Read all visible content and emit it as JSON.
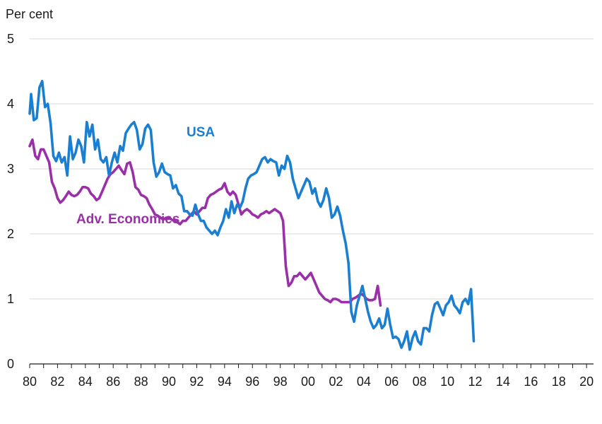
{
  "chart_data": {
    "type": "line",
    "ylabel": "Per cent",
    "ylim": [
      0,
      5
    ],
    "yticks": [
      "0",
      "1",
      "2",
      "3",
      "4",
      "5"
    ],
    "xlim": [
      1980.0,
      2020.5
    ],
    "xticks": [
      {
        "x": 1980,
        "label": "80"
      },
      {
        "x": 1982,
        "label": "82"
      },
      {
        "x": 1984,
        "label": "84"
      },
      {
        "x": 1986,
        "label": "86"
      },
      {
        "x": 1988,
        "label": "88"
      },
      {
        "x": 1990,
        "label": "90"
      },
      {
        "x": 1992,
        "label": "92"
      },
      {
        "x": 1994,
        "label": "94"
      },
      {
        "x": 1996,
        "label": "96"
      },
      {
        "x": 1998,
        "label": "98"
      },
      {
        "x": 2000,
        "label": "00"
      },
      {
        "x": 2002,
        "label": "02"
      },
      {
        "x": 2004,
        "label": "04"
      },
      {
        "x": 2006,
        "label": "06"
      },
      {
        "x": 2008,
        "label": "08"
      },
      {
        "x": 2010,
        "label": "10"
      },
      {
        "x": 2012,
        "label": "12"
      },
      {
        "x": 2014,
        "label": "14"
      },
      {
        "x": 2016,
        "label": "16"
      },
      {
        "x": 2018,
        "label": "18"
      },
      {
        "x": 2020,
        "label": "20"
      }
    ],
    "grid": true,
    "series": [
      {
        "name": "USA",
        "color": "#1a7fd0",
        "points": [
          [
            1980.0,
            3.85
          ],
          [
            1980.1,
            4.15
          ],
          [
            1980.3,
            3.75
          ],
          [
            1980.5,
            3.78
          ],
          [
            1980.7,
            4.25
          ],
          [
            1980.9,
            4.35
          ],
          [
            1981.1,
            3.95
          ],
          [
            1981.3,
            4.0
          ],
          [
            1981.5,
            3.7
          ],
          [
            1981.7,
            3.2
          ],
          [
            1981.9,
            3.12
          ],
          [
            1982.1,
            3.25
          ],
          [
            1982.3,
            3.1
          ],
          [
            1982.5,
            3.18
          ],
          [
            1982.7,
            2.9
          ],
          [
            1982.9,
            3.5
          ],
          [
            1983.1,
            3.15
          ],
          [
            1983.3,
            3.25
          ],
          [
            1983.5,
            3.45
          ],
          [
            1983.7,
            3.35
          ],
          [
            1983.9,
            3.1
          ],
          [
            1984.1,
            3.72
          ],
          [
            1984.3,
            3.5
          ],
          [
            1984.5,
            3.68
          ],
          [
            1984.7,
            3.3
          ],
          [
            1984.9,
            3.45
          ],
          [
            1985.1,
            3.15
          ],
          [
            1985.3,
            3.1
          ],
          [
            1985.5,
            3.18
          ],
          [
            1985.7,
            2.9
          ],
          [
            1985.9,
            3.1
          ],
          [
            1986.1,
            3.25
          ],
          [
            1986.3,
            3.1
          ],
          [
            1986.5,
            3.35
          ],
          [
            1986.7,
            3.28
          ],
          [
            1986.9,
            3.55
          ],
          [
            1987.1,
            3.62
          ],
          [
            1987.3,
            3.68
          ],
          [
            1987.5,
            3.72
          ],
          [
            1987.7,
            3.6
          ],
          [
            1987.9,
            3.3
          ],
          [
            1988.1,
            3.38
          ],
          [
            1988.3,
            3.62
          ],
          [
            1988.5,
            3.68
          ],
          [
            1988.7,
            3.6
          ],
          [
            1988.9,
            3.1
          ],
          [
            1989.1,
            2.88
          ],
          [
            1989.3,
            2.95
          ],
          [
            1989.5,
            3.08
          ],
          [
            1989.7,
            2.95
          ],
          [
            1989.9,
            2.92
          ],
          [
            1990.1,
            2.9
          ],
          [
            1990.3,
            2.7
          ],
          [
            1990.5,
            2.75
          ],
          [
            1990.7,
            2.62
          ],
          [
            1990.9,
            2.58
          ],
          [
            1991.1,
            2.35
          ],
          [
            1991.3,
            2.35
          ],
          [
            1991.5,
            2.3
          ],
          [
            1991.7,
            2.28
          ],
          [
            1991.9,
            2.45
          ],
          [
            1992.1,
            2.3
          ],
          [
            1992.3,
            2.2
          ],
          [
            1992.5,
            2.2
          ],
          [
            1992.7,
            2.1
          ],
          [
            1992.9,
            2.05
          ],
          [
            1993.1,
            2.0
          ],
          [
            1993.3,
            2.05
          ],
          [
            1993.5,
            1.98
          ],
          [
            1993.7,
            2.1
          ],
          [
            1993.9,
            2.2
          ],
          [
            1994.1,
            2.38
          ],
          [
            1994.3,
            2.25
          ],
          [
            1994.5,
            2.5
          ],
          [
            1994.7,
            2.32
          ],
          [
            1994.9,
            2.45
          ],
          [
            1995.1,
            2.4
          ],
          [
            1995.3,
            2.5
          ],
          [
            1995.5,
            2.7
          ],
          [
            1995.7,
            2.85
          ],
          [
            1995.9,
            2.9
          ],
          [
            1996.1,
            2.92
          ],
          [
            1996.3,
            2.95
          ],
          [
            1996.5,
            3.05
          ],
          [
            1996.7,
            3.15
          ],
          [
            1996.9,
            3.18
          ],
          [
            1997.1,
            3.1
          ],
          [
            1997.3,
            3.15
          ],
          [
            1997.5,
            3.12
          ],
          [
            1997.7,
            3.1
          ],
          [
            1997.9,
            2.9
          ],
          [
            1998.1,
            3.05
          ],
          [
            1998.3,
            3.0
          ],
          [
            1998.5,
            3.2
          ],
          [
            1998.7,
            3.1
          ],
          [
            1998.9,
            2.85
          ],
          [
            1999.1,
            2.7
          ],
          [
            1999.3,
            2.55
          ],
          [
            1999.5,
            2.65
          ],
          [
            1999.7,
            2.75
          ],
          [
            1999.9,
            2.85
          ],
          [
            2000.1,
            2.8
          ],
          [
            2000.3,
            2.62
          ],
          [
            2000.5,
            2.7
          ],
          [
            2000.7,
            2.5
          ],
          [
            2000.9,
            2.42
          ],
          [
            2001.1,
            2.52
          ],
          [
            2001.3,
            2.7
          ],
          [
            2001.5,
            2.55
          ],
          [
            2001.7,
            2.25
          ],
          [
            2001.9,
            2.3
          ],
          [
            2002.1,
            2.42
          ],
          [
            2002.3,
            2.28
          ],
          [
            2002.5,
            2.05
          ],
          [
            2002.7,
            1.85
          ],
          [
            2002.9,
            1.55
          ],
          [
            2003.1,
            0.8
          ],
          [
            2003.3,
            0.65
          ],
          [
            2003.5,
            0.9
          ],
          [
            2003.7,
            1.05
          ],
          [
            2003.9,
            1.2
          ],
          [
            2004.1,
            1.0
          ],
          [
            2004.3,
            0.8
          ],
          [
            2004.5,
            0.65
          ],
          [
            2004.7,
            0.55
          ],
          [
            2004.9,
            0.6
          ],
          [
            2005.1,
            0.7
          ],
          [
            2005.3,
            0.55
          ],
          [
            2005.5,
            0.6
          ],
          [
            2005.7,
            0.85
          ],
          [
            2005.9,
            0.6
          ],
          [
            2006.1,
            0.4
          ],
          [
            2006.3,
            0.42
          ],
          [
            2006.5,
            0.38
          ],
          [
            2006.7,
            0.25
          ],
          [
            2006.9,
            0.35
          ],
          [
            2007.1,
            0.5
          ],
          [
            2007.3,
            0.22
          ],
          [
            2007.5,
            0.4
          ],
          [
            2007.7,
            0.5
          ],
          [
            2007.9,
            0.35
          ],
          [
            2008.1,
            0.3
          ],
          [
            2008.3,
            0.55
          ],
          [
            2008.5,
            0.55
          ],
          [
            2008.7,
            0.5
          ],
          [
            2008.9,
            0.75
          ],
          [
            2009.1,
            0.92
          ],
          [
            2009.3,
            0.95
          ],
          [
            2009.5,
            0.85
          ],
          [
            2009.7,
            0.75
          ],
          [
            2009.9,
            0.9
          ],
          [
            2010.1,
            0.95
          ],
          [
            2010.3,
            1.05
          ],
          [
            2010.5,
            0.9
          ],
          [
            2010.7,
            0.85
          ],
          [
            2010.9,
            0.78
          ],
          [
            2011.1,
            0.95
          ],
          [
            2011.3,
            1.0
          ],
          [
            2011.5,
            0.92
          ],
          [
            2011.7,
            1.15
          ],
          [
            2011.9,
            0.35
          ]
        ]
      },
      {
        "name": "Adv. Economies",
        "color": "#9a30a8",
        "points": [
          [
            1980.0,
            3.35
          ],
          [
            1980.2,
            3.45
          ],
          [
            1980.4,
            3.2
          ],
          [
            1980.6,
            3.15
          ],
          [
            1980.8,
            3.3
          ],
          [
            1981.0,
            3.3
          ],
          [
            1981.2,
            3.2
          ],
          [
            1981.4,
            3.1
          ],
          [
            1981.6,
            2.8
          ],
          [
            1981.8,
            2.7
          ],
          [
            1982.0,
            2.55
          ],
          [
            1982.2,
            2.48
          ],
          [
            1982.4,
            2.52
          ],
          [
            1982.6,
            2.58
          ],
          [
            1982.8,
            2.65
          ],
          [
            1983.0,
            2.6
          ],
          [
            1983.2,
            2.58
          ],
          [
            1983.4,
            2.6
          ],
          [
            1983.6,
            2.65
          ],
          [
            1983.8,
            2.72
          ],
          [
            1984.0,
            2.72
          ],
          [
            1984.2,
            2.7
          ],
          [
            1984.4,
            2.62
          ],
          [
            1984.6,
            2.58
          ],
          [
            1984.8,
            2.52
          ],
          [
            1985.0,
            2.55
          ],
          [
            1985.2,
            2.65
          ],
          [
            1985.4,
            2.75
          ],
          [
            1985.6,
            2.85
          ],
          [
            1985.8,
            2.92
          ],
          [
            1986.0,
            2.95
          ],
          [
            1986.2,
            3.0
          ],
          [
            1986.4,
            3.05
          ],
          [
            1986.6,
            2.98
          ],
          [
            1986.8,
            2.92
          ],
          [
            1987.0,
            3.08
          ],
          [
            1987.2,
            3.1
          ],
          [
            1987.4,
            2.95
          ],
          [
            1987.6,
            2.72
          ],
          [
            1987.8,
            2.68
          ],
          [
            1988.0,
            2.6
          ],
          [
            1988.2,
            2.58
          ],
          [
            1988.4,
            2.55
          ],
          [
            1988.6,
            2.45
          ],
          [
            1988.8,
            2.38
          ],
          [
            1989.0,
            2.3
          ],
          [
            1989.2,
            2.28
          ],
          [
            1989.4,
            2.25
          ],
          [
            1989.6,
            2.22
          ],
          [
            1989.8,
            2.25
          ],
          [
            1990.0,
            2.25
          ],
          [
            1990.2,
            2.22
          ],
          [
            1990.4,
            2.2
          ],
          [
            1990.6,
            2.18
          ],
          [
            1990.8,
            2.15
          ],
          [
            1991.0,
            2.2
          ],
          [
            1991.2,
            2.2
          ],
          [
            1991.4,
            2.25
          ],
          [
            1991.6,
            2.3
          ],
          [
            1991.8,
            2.35
          ],
          [
            1992.0,
            2.3
          ],
          [
            1992.2,
            2.35
          ],
          [
            1992.4,
            2.4
          ],
          [
            1992.6,
            2.4
          ],
          [
            1992.8,
            2.55
          ],
          [
            1993.0,
            2.6
          ],
          [
            1993.2,
            2.62
          ],
          [
            1993.4,
            2.65
          ],
          [
            1993.6,
            2.68
          ],
          [
            1993.8,
            2.7
          ],
          [
            1994.0,
            2.78
          ],
          [
            1994.2,
            2.65
          ],
          [
            1994.4,
            2.6
          ],
          [
            1994.6,
            2.65
          ],
          [
            1994.8,
            2.6
          ],
          [
            1995.0,
            2.45
          ],
          [
            1995.2,
            2.3
          ],
          [
            1995.4,
            2.35
          ],
          [
            1995.6,
            2.38
          ],
          [
            1995.8,
            2.35
          ],
          [
            1996.0,
            2.3
          ],
          [
            1996.2,
            2.28
          ],
          [
            1996.4,
            2.25
          ],
          [
            1996.6,
            2.3
          ],
          [
            1996.8,
            2.32
          ],
          [
            1997.0,
            2.35
          ],
          [
            1997.2,
            2.32
          ],
          [
            1997.4,
            2.35
          ],
          [
            1997.6,
            2.38
          ],
          [
            1997.8,
            2.35
          ],
          [
            1998.0,
            2.32
          ],
          [
            1998.2,
            2.2
          ],
          [
            1998.4,
            1.5
          ],
          [
            1998.6,
            1.2
          ],
          [
            1998.8,
            1.25
          ],
          [
            1999.0,
            1.35
          ],
          [
            1999.2,
            1.35
          ],
          [
            1999.4,
            1.4
          ],
          [
            1999.6,
            1.35
          ],
          [
            1999.8,
            1.3
          ],
          [
            2000.0,
            1.35
          ],
          [
            2000.2,
            1.4
          ],
          [
            2000.4,
            1.3
          ],
          [
            2000.6,
            1.2
          ],
          [
            2000.8,
            1.1
          ],
          [
            2001.0,
            1.05
          ],
          [
            2001.2,
            1.0
          ],
          [
            2001.4,
            0.98
          ],
          [
            2001.6,
            0.95
          ],
          [
            2001.8,
            1.0
          ],
          [
            2002.0,
            1.0
          ],
          [
            2002.2,
            0.98
          ],
          [
            2002.4,
            0.95
          ],
          [
            2002.6,
            0.95
          ],
          [
            2002.8,
            0.95
          ],
          [
            2003.0,
            0.95
          ],
          [
            2003.2,
            1.0
          ],
          [
            2003.4,
            1.02
          ],
          [
            2003.6,
            1.05
          ],
          [
            2003.8,
            1.08
          ],
          [
            2004.0,
            1.05
          ],
          [
            2004.2,
            1.0
          ],
          [
            2004.4,
            0.98
          ],
          [
            2004.6,
            0.98
          ],
          [
            2004.8,
            1.0
          ],
          [
            2005.0,
            1.2
          ],
          [
            2005.2,
            0.9
          ]
        ]
      }
    ]
  }
}
